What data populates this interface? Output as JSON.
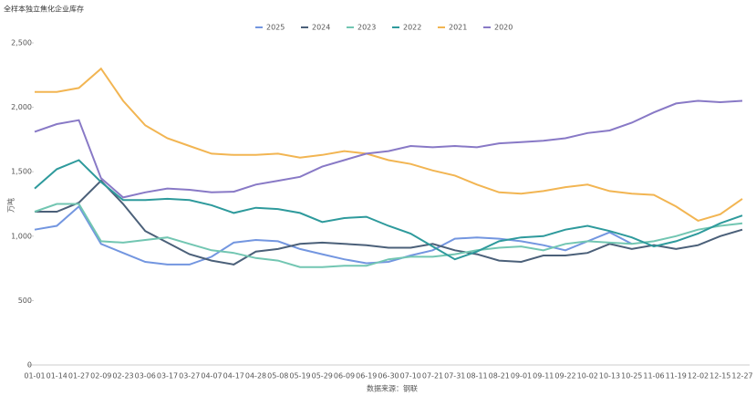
{
  "chart_data": {
    "type": "line",
    "title": "全样本独立焦化企业库存",
    "y_label": "万吨",
    "source": "数据来源：钢联",
    "categories": [
      "01-01",
      "01-14",
      "01-27",
      "02-09",
      "02-23",
      "03-06",
      "03-17",
      "03-27",
      "04-07",
      "04-17",
      "04-28",
      "05-08",
      "05-19",
      "05-29",
      "06-09",
      "06-19",
      "06-30",
      "07-10",
      "07-21",
      "07-31",
      "08-11",
      "08-21",
      "09-01",
      "09-11",
      "09-22",
      "10-02",
      "10-13",
      "10-25",
      "11-06",
      "11-19",
      "12-02",
      "12-15",
      "12-27"
    ],
    "ylim": [
      0,
      2500
    ],
    "yticks": [
      0,
      500,
      {
        "value": 1000,
        "label": "1,000"
      },
      {
        "value": 1500,
        "label": "1,500"
      },
      {
        "value": 2000,
        "label": "2,000"
      },
      {
        "value": 2500,
        "label": "2,500"
      }
    ],
    "grid": false,
    "legend": "top",
    "series": [
      {
        "name": "2025",
        "color": "#7396e0",
        "values": [
          1050,
          1080,
          1230,
          940,
          870,
          800,
          780,
          780,
          840,
          950,
          970,
          960,
          900,
          860,
          820,
          790,
          800,
          850,
          890,
          980,
          990,
          980,
          960,
          930,
          890,
          960,
          1030,
          940,
          null,
          null,
          null,
          null,
          null
        ]
      },
      {
        "name": "2024",
        "color": "#4b6079",
        "values": [
          1190,
          1190,
          1260,
          1430,
          1250,
          1040,
          950,
          860,
          810,
          780,
          880,
          900,
          940,
          950,
          940,
          930,
          910,
          910,
          940,
          890,
          860,
          810,
          800,
          850,
          850,
          870,
          940,
          900,
          930,
          900,
          930,
          1000,
          1050
        ]
      },
      {
        "name": "2023",
        "color": "#72c6b2",
        "values": [
          1190,
          1250,
          1250,
          960,
          950,
          970,
          990,
          940,
          890,
          870,
          830,
          810,
          760,
          760,
          770,
          770,
          820,
          840,
          840,
          860,
          890,
          910,
          920,
          890,
          940,
          960,
          950,
          940,
          960,
          1000,
          1050,
          1080,
          1100
        ]
      },
      {
        "name": "2022",
        "color": "#2e9a9c",
        "values": [
          1370,
          1520,
          1590,
          1420,
          1280,
          1280,
          1290,
          1280,
          1240,
          1180,
          1220,
          1210,
          1180,
          1110,
          1140,
          1150,
          1080,
          1020,
          920,
          820,
          880,
          960,
          990,
          1000,
          1050,
          1080,
          1040,
          990,
          920,
          960,
          1020,
          1100,
          1160
        ]
      },
      {
        "name": "2021",
        "color": "#f2b552",
        "values": [
          2120,
          2120,
          2150,
          2300,
          2050,
          1860,
          1760,
          1700,
          1640,
          1630,
          1630,
          1640,
          1610,
          1630,
          1660,
          1640,
          1590,
          1560,
          1510,
          1470,
          1400,
          1340,
          1330,
          1350,
          1380,
          1400,
          1350,
          1330,
          1320,
          1230,
          1120,
          1170,
          1290
        ]
      },
      {
        "name": "2020",
        "color": "#8879c6",
        "values": [
          1810,
          1870,
          1900,
          1450,
          1300,
          1340,
          1370,
          1360,
          1340,
          1345,
          1400,
          1430,
          1460,
          1540,
          1590,
          1640,
          1660,
          1700,
          1690,
          1700,
          1690,
          1720,
          1730,
          1740,
          1760,
          1800,
          1820,
          1880,
          1960,
          2030,
          2050,
          2040,
          2050
        ]
      }
    ]
  }
}
